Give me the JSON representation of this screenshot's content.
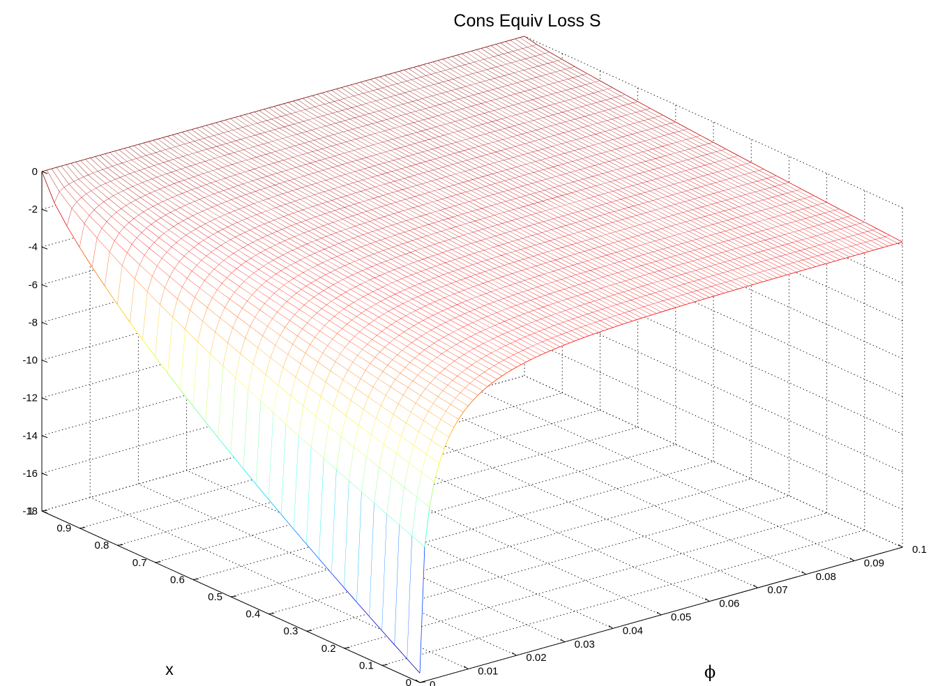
{
  "chart_data": {
    "type": "surface",
    "title": "Cons Equiv Loss S",
    "xlabel": "x",
    "ylabel": "ϕ",
    "zlabel": "",
    "x_ticks": [
      "0",
      "0.1",
      "0.2",
      "0.3",
      "0.4",
      "0.5",
      "0.6",
      "0.7",
      "0.8",
      "0.9",
      "1"
    ],
    "phi_ticks": [
      "0",
      "0.01",
      "0.02",
      "0.03",
      "0.04",
      "0.05",
      "0.06",
      "0.07",
      "0.08",
      "0.09",
      "0.1"
    ],
    "z_ticks": [
      "0",
      "-2",
      "-4",
      "-6",
      "-8",
      "-10",
      "-12",
      "-14",
      "-16",
      "-18"
    ],
    "xlim": [
      0,
      1
    ],
    "philim": [
      0,
      0.1
    ],
    "zlim": [
      -18,
      0
    ],
    "grid": true,
    "colormap": "jet",
    "mesh_resolution": {
      "x": 31,
      "phi": 101
    },
    "z_samples": {
      "phi_0_by_x": {
        "x": [
          0,
          0.1,
          0.3,
          0.5,
          0.7,
          0.9,
          1
        ],
        "z": [
          -17.5,
          -16.3,
          -13.6,
          -10.6,
          -7.2,
          -3.2,
          0
        ]
      },
      "x_0_by_phi": {
        "phi": [
          0,
          0.005,
          0.01,
          0.03,
          0.06,
          0.1
        ],
        "z": [
          -17.5,
          -7.5,
          -4.9,
          -2.8,
          -2.1,
          -1.8
        ]
      },
      "edges": {
        "x1_phi0": 0,
        "x1_phi0.1": 0,
        "x0_phi0.1": -1.8
      }
    }
  }
}
